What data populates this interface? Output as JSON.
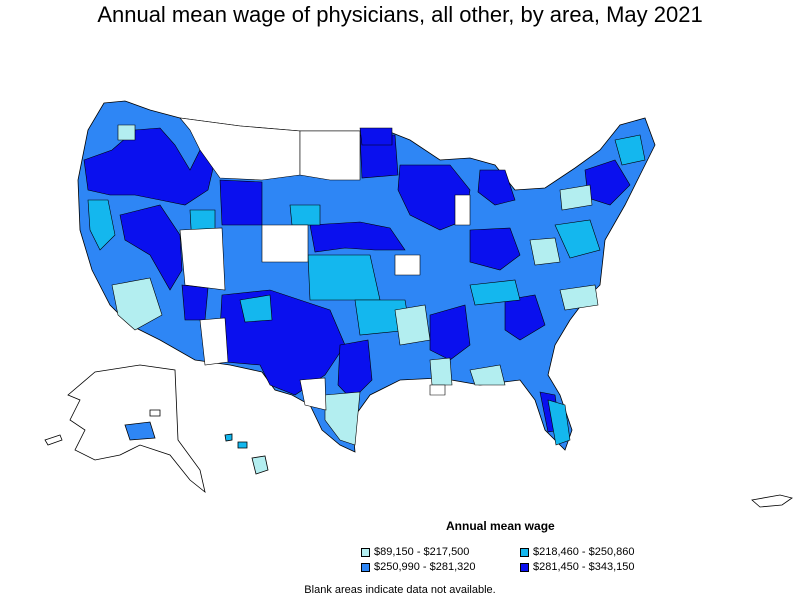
{
  "title": "Annual mean wage of physicians, all other, by area, May 2021",
  "legend": {
    "title": "Annual mean wage",
    "items": [
      {
        "label": "$89,150 - $217,500",
        "color": "#b3eef0"
      },
      {
        "label": "$218,460 - $250,860",
        "color": "#14b7ee"
      },
      {
        "label": "$250,990 - $281,320",
        "color": "#2e86f5"
      },
      {
        "label": "$281,450 - $343,150",
        "color": "#0a10ee"
      }
    ]
  },
  "footnote": "Blank areas indicate data not available.",
  "colors": {
    "outline": "#000000",
    "no_data": "#ffffff"
  }
}
